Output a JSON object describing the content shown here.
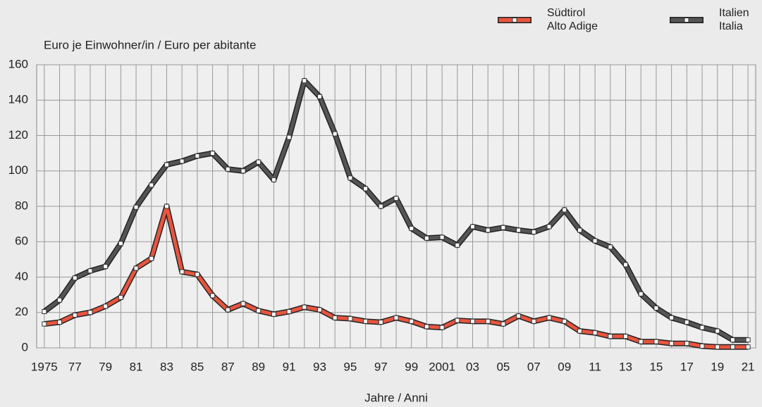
{
  "chart_data": {
    "type": "line",
    "y_label": "Euro je Einwohner/in / Euro per abitante",
    "x_label": "Jahre / Anni",
    "categories": [
      "1975",
      null,
      "77",
      null,
      "79",
      null,
      "81",
      null,
      "83",
      null,
      "85",
      null,
      "87",
      null,
      "89",
      null,
      "91",
      null,
      "93",
      null,
      "95",
      null,
      "97",
      null,
      "99",
      null,
      "2001",
      null,
      "03",
      null,
      "05",
      null,
      "07",
      null,
      "09",
      null,
      "11",
      null,
      "13",
      null,
      "15",
      null,
      "17",
      null,
      "19",
      null,
      "21"
    ],
    "series": [
      {
        "name": "Südtirol\nAlto Adige",
        "color": "#e8553f",
        "values": [
          13.5,
          14.5,
          18.5,
          20,
          23.5,
          28.5,
          45,
          50.5,
          80,
          43,
          41.5,
          29.5,
          21.5,
          25,
          21,
          19,
          20.5,
          23,
          21.5,
          17,
          16.5,
          15,
          14.5,
          17,
          15,
          12,
          11.5,
          15.5,
          15,
          15,
          13.5,
          18,
          15,
          17,
          15,
          9.5,
          8.5,
          6.5,
          6.5,
          3.5,
          3.5,
          2.5,
          2.5,
          1,
          0.5,
          0.5,
          0.5
        ]
      },
      {
        "name": "Italien\nItalia",
        "color": "#555555",
        "values": [
          20.5,
          27,
          39.5,
          43.5,
          46,
          59,
          79.5,
          92,
          103.5,
          105.5,
          108.5,
          110,
          101,
          100,
          105,
          95,
          119,
          151,
          142,
          121,
          96,
          90,
          80,
          84.5,
          67.5,
          62,
          62.5,
          58,
          68.5,
          66.5,
          68,
          66.5,
          65.5,
          68.5,
          78,
          66.5,
          60.5,
          57,
          47,
          30.5,
          22.5,
          17,
          14.5,
          11.5,
          9.5,
          4.5,
          4.5
        ]
      }
    ],
    "ylim": [
      0,
      160
    ],
    "yticks": [
      0,
      20,
      40,
      60,
      80,
      100,
      120,
      140,
      160
    ],
    "grid": true
  }
}
